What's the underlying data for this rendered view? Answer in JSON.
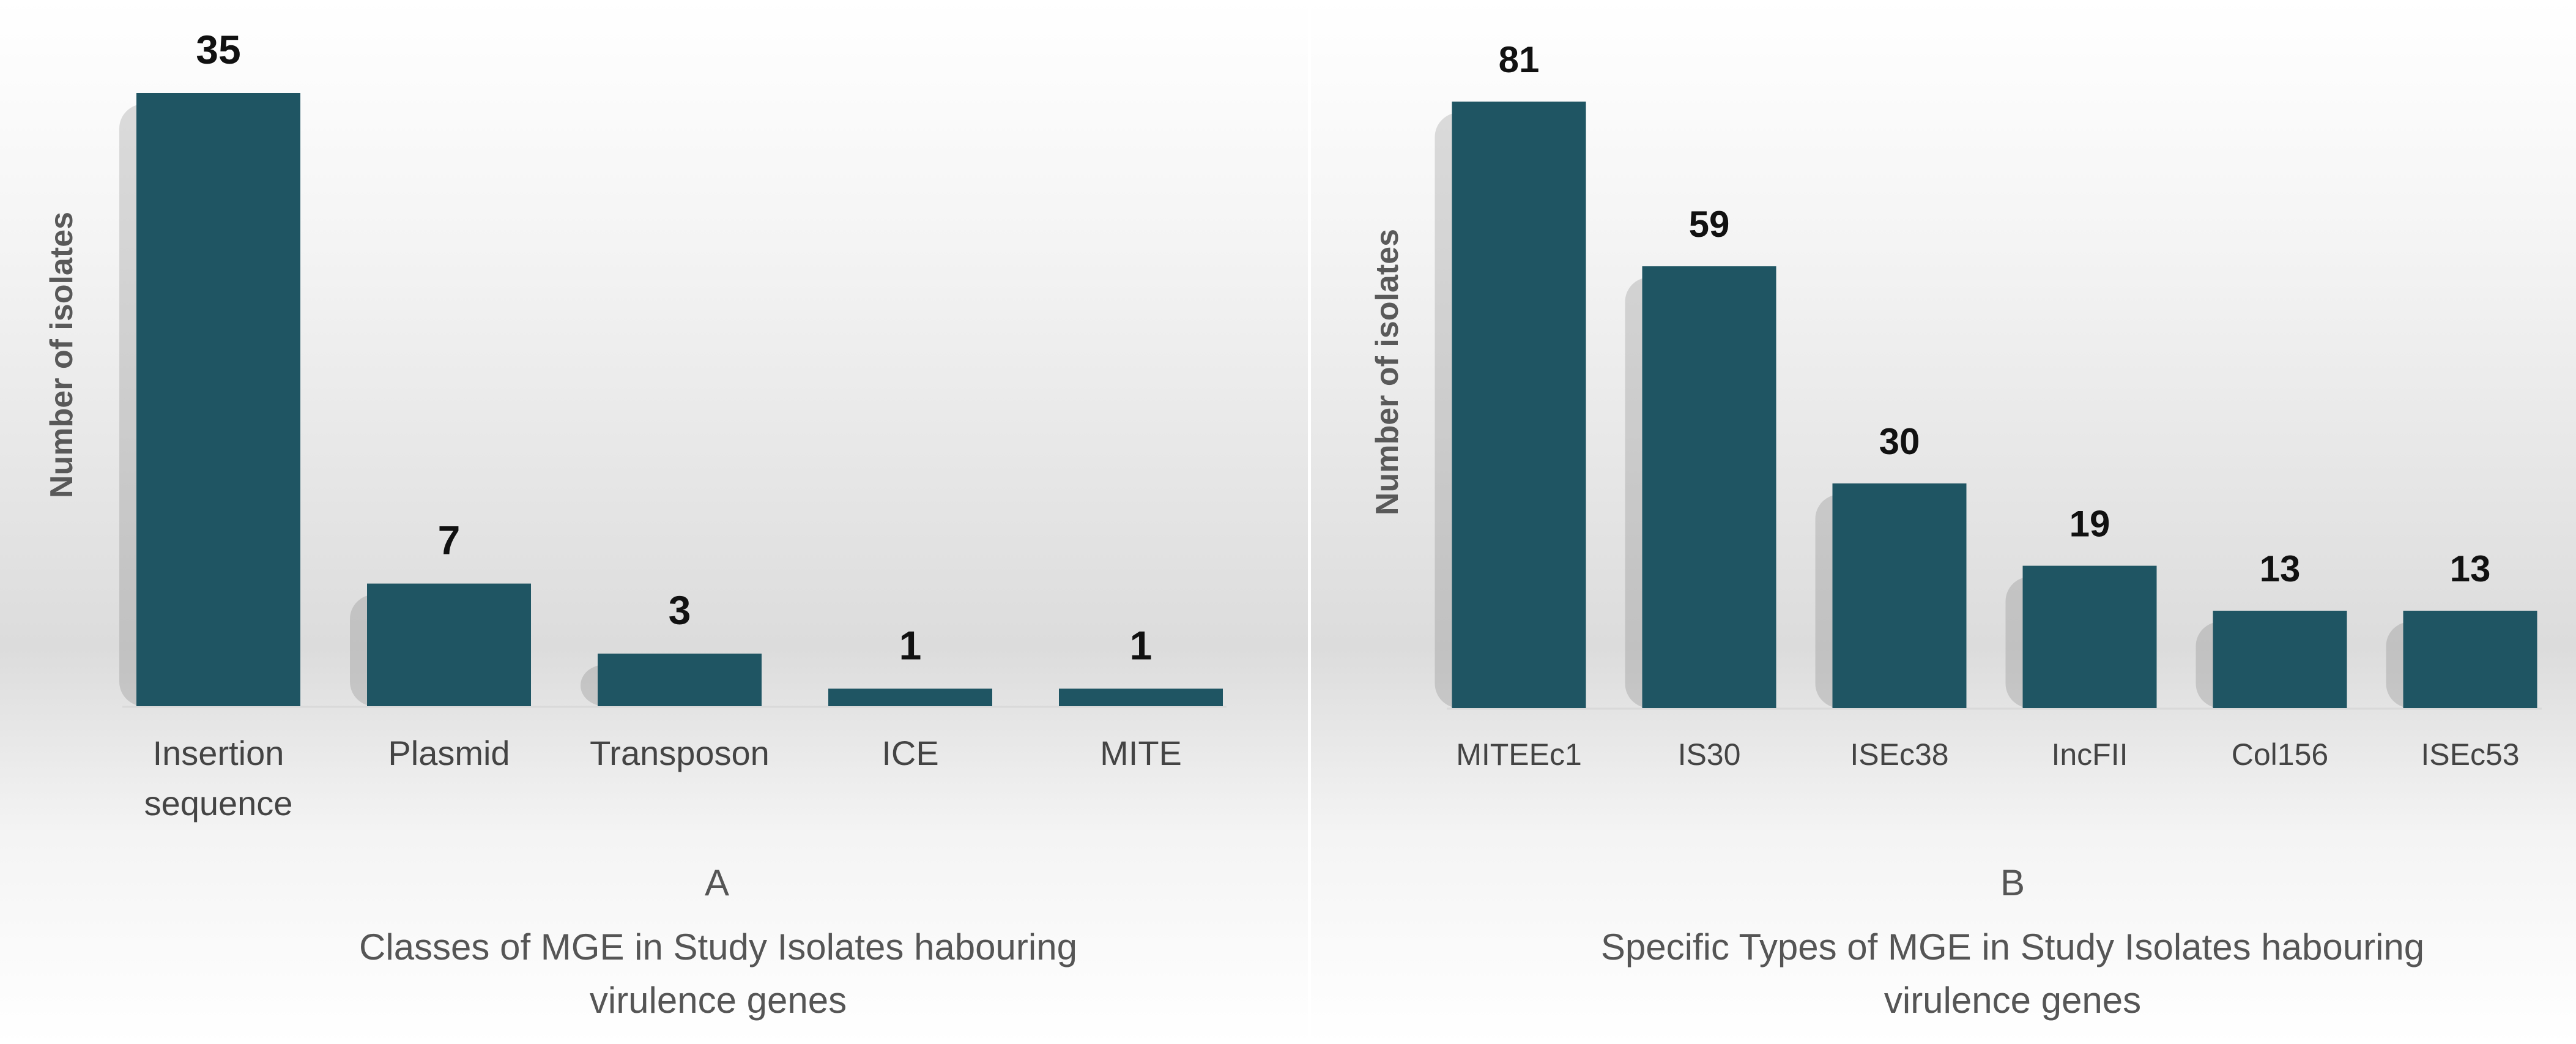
{
  "chart_data": [
    {
      "type": "bar",
      "panel_letter": "A",
      "caption": "Classes of MGE in Study Isolates habouring virulence genes",
      "ylabel": "Number of isolates",
      "xlabel": "",
      "categories": [
        "Insertion sequence",
        "Plasmid",
        "Transposon",
        "ICE",
        "MITE"
      ],
      "values": [
        35,
        7,
        3,
        1,
        1
      ],
      "ylim": [
        0,
        35
      ],
      "grid": false,
      "legend": "none",
      "bar_color": "#1f5563"
    },
    {
      "type": "bar",
      "panel_letter": "B",
      "caption": "Specific Types of MGE in Study Isolates habouring virulence genes",
      "ylabel": "Number of isolates",
      "xlabel": "",
      "categories": [
        "MITEEc1",
        "IS30",
        "ISEc38",
        "IncFII",
        "Col156",
        "ISEc53"
      ],
      "values": [
        81,
        59,
        30,
        19,
        13,
        13
      ],
      "ylim": [
        0,
        81
      ],
      "grid": false,
      "legend": "none",
      "bar_color": "#1f5563"
    }
  ]
}
